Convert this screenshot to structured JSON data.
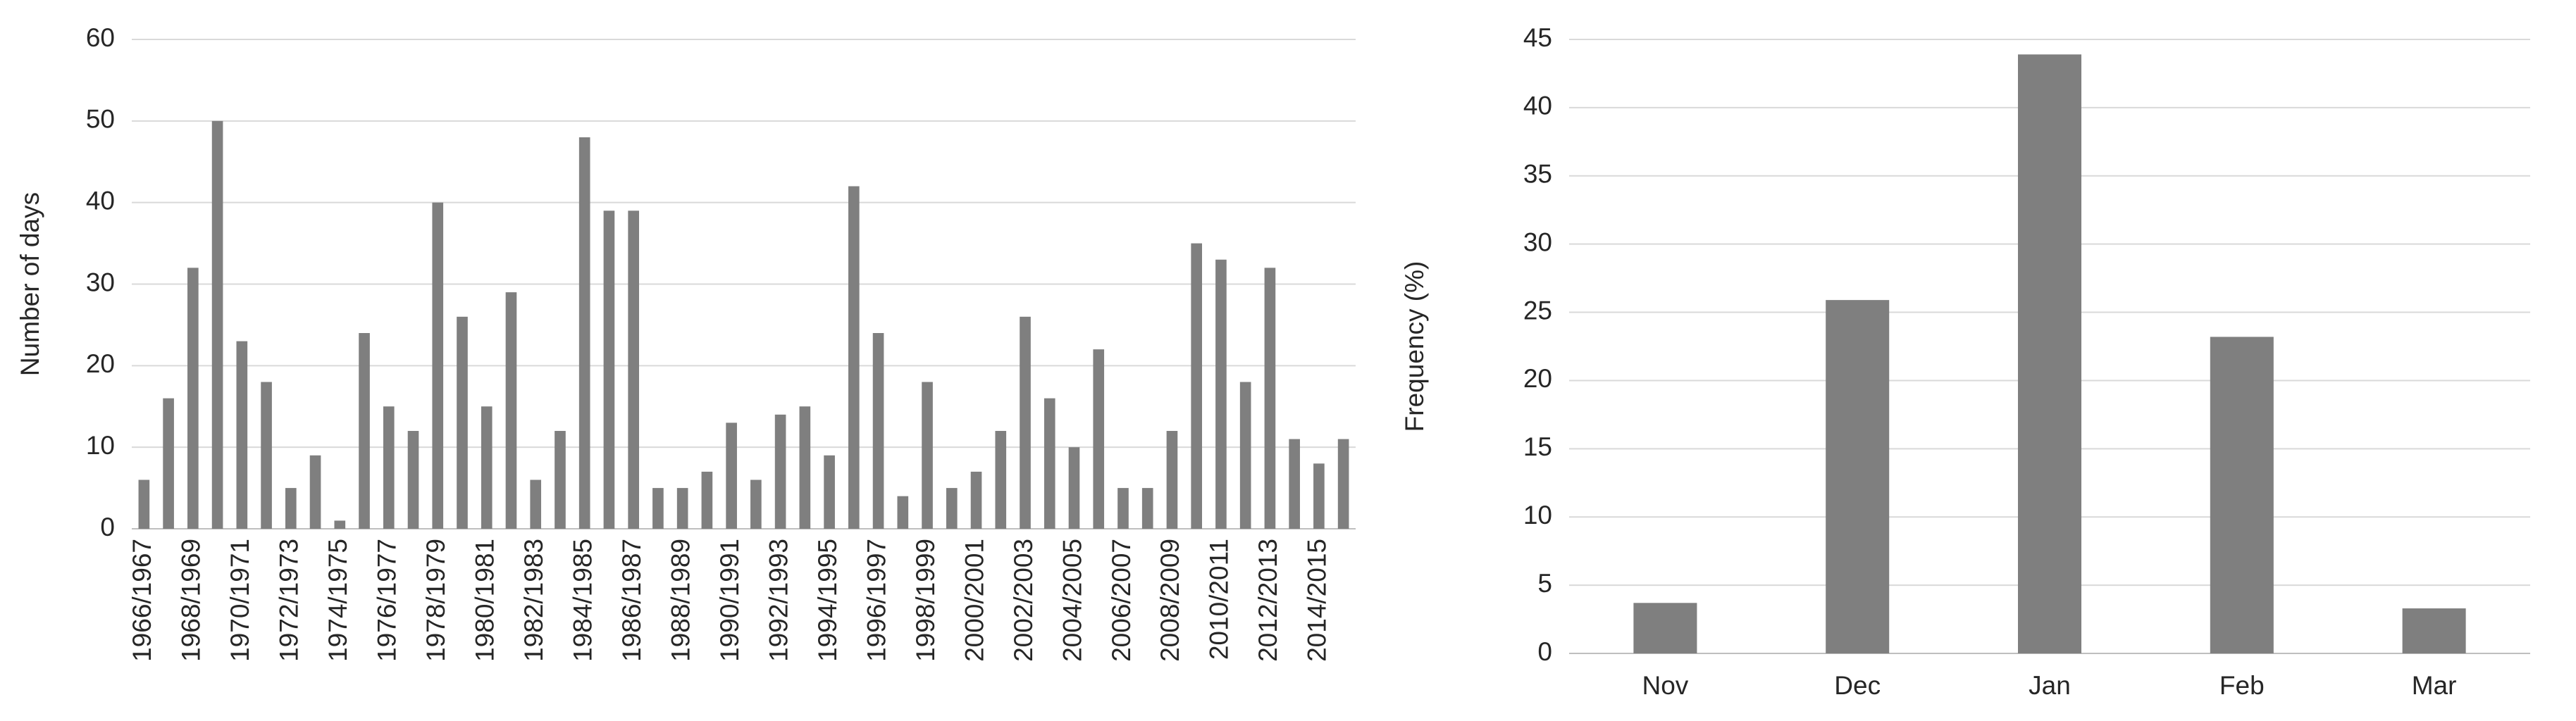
{
  "chart_data": [
    {
      "type": "bar",
      "y_label": "Number of days",
      "categories": [
        "1966/1967",
        null,
        "1968/1969",
        null,
        "1970/1971",
        null,
        "1972/1973",
        null,
        "1974/1975",
        null,
        "1976/1977",
        null,
        "1978/1979",
        null,
        "1980/1981",
        null,
        "1982/1983",
        null,
        "1984/1985",
        null,
        "1986/1987",
        null,
        "1988/1989",
        null,
        "1990/1991",
        null,
        "1992/1993",
        null,
        "1994/1995",
        null,
        "1996/1997",
        null,
        "1998/1999",
        null,
        "2000/2001",
        null,
        "2002/2003",
        null,
        "2004/2005",
        null,
        "2006/2007",
        null,
        "2008/2009",
        null,
        "2010/2011",
        null,
        "2012/2013",
        null,
        "2014/2015",
        null
      ],
      "values": [
        6,
        16,
        32,
        50,
        23,
        18,
        5,
        9,
        1,
        24,
        15,
        12,
        40,
        26,
        15,
        29,
        6,
        12,
        48,
        39,
        39,
        5,
        5,
        7,
        13,
        6,
        14,
        15,
        9,
        42,
        24,
        4,
        18,
        5,
        7,
        12,
        26,
        16,
        10,
        22,
        5,
        5,
        12,
        35,
        33,
        18,
        32,
        11,
        8,
        11
      ],
      "color": "#7f7f7f",
      "ylim": [
        0,
        60
      ],
      "yticks": [
        0,
        10,
        20,
        30,
        40,
        50,
        60
      ],
      "grid": true,
      "rotate_labels": true
    },
    {
      "type": "bar",
      "y_label": "Frequency (%)",
      "categories": [
        "Nov",
        "Dec",
        "Jan",
        "Feb",
        "Mar"
      ],
      "values": [
        3.7,
        25.9,
        43.9,
        23.2,
        3.3
      ],
      "color": "#7f7f7f",
      "ylim": [
        0,
        45
      ],
      "yticks": [
        0,
        5,
        10,
        15,
        20,
        25,
        30,
        35,
        40,
        45
      ],
      "grid": true,
      "rotate_labels": false
    }
  ]
}
